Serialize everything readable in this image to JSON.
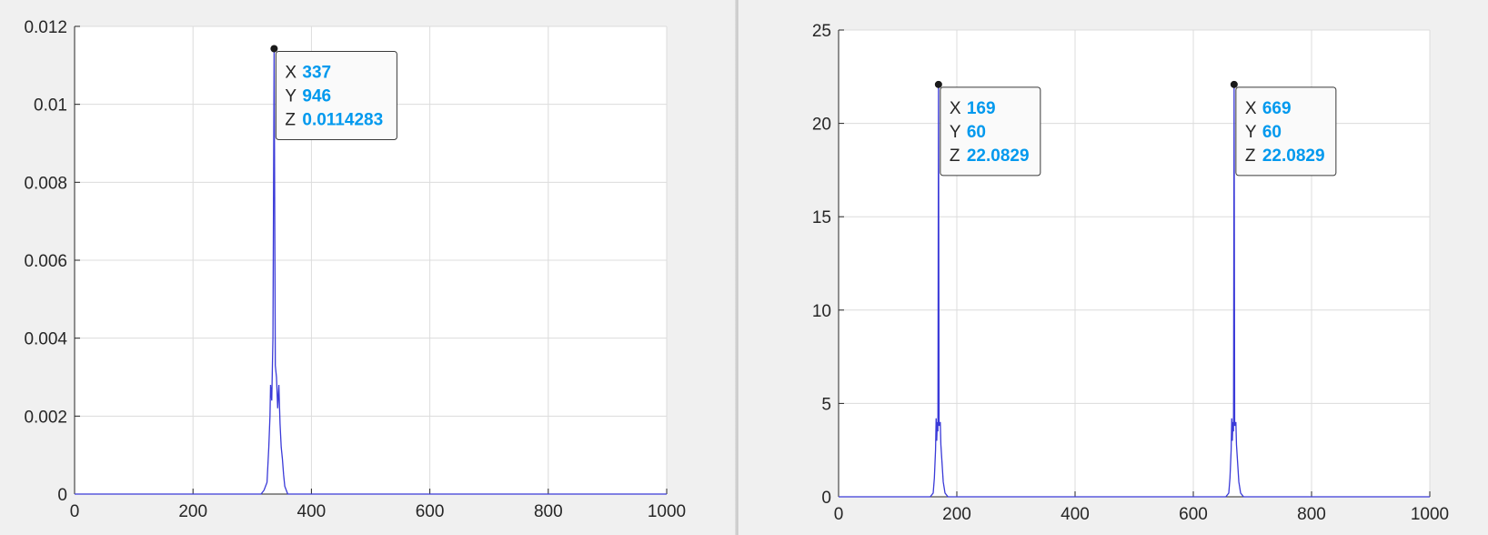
{
  "chart_data": [
    {
      "type": "line",
      "title": "",
      "xlabel": "",
      "ylabel": "",
      "xlim": [
        0,
        1000
      ],
      "ylim": [
        0,
        0.012
      ],
      "xticks": [
        "0",
        "200",
        "400",
        "600",
        "800",
        "1000"
      ],
      "yticks": [
        "0",
        "0.002",
        "0.004",
        "0.006",
        "0.008",
        "0.01",
        "0.012"
      ],
      "grid": true,
      "series": [
        {
          "values": [
            [
              0,
              0
            ],
            [
              315,
              0
            ],
            [
              320,
              0.0001
            ],
            [
              325,
              0.0003
            ],
            [
              328,
              0.0012
            ],
            [
              330,
              0.002
            ],
            [
              331,
              0.0028
            ],
            [
              333,
              0.0024
            ],
            [
              335,
              0.004
            ],
            [
              337,
              0.0114283
            ],
            [
              339,
              0.0033
            ],
            [
              341,
              0.003
            ],
            [
              343,
              0.0022
            ],
            [
              345,
              0.0028
            ],
            [
              347,
              0.0018
            ],
            [
              349,
              0.0012
            ],
            [
              351,
              0.0009
            ],
            [
              353,
              0.0005
            ],
            [
              355,
              0.0002
            ],
            [
              360,
              0
            ],
            [
              1000,
              0
            ]
          ],
          "color": "#3a3ad8"
        }
      ],
      "datatips": [
        {
          "x": 337,
          "z": 0.0114283,
          "x_label": "X",
          "x_value": "337",
          "y_label": "Y",
          "y_value": "946",
          "z_label": "Z",
          "z_value": "0.0114283"
        }
      ]
    },
    {
      "type": "line",
      "title": "",
      "xlabel": "",
      "ylabel": "",
      "xlim": [
        0,
        1000
      ],
      "ylim": [
        0,
        25
      ],
      "xticks": [
        "0",
        "200",
        "400",
        "600",
        "800",
        "1000"
      ],
      "yticks": [
        "0",
        "5",
        "10",
        "15",
        "20",
        "25"
      ],
      "grid": true,
      "series": [
        {
          "values": [
            [
              0,
              0
            ],
            [
              155,
              0
            ],
            [
              160,
              0.2
            ],
            [
              162,
              1.0
            ],
            [
              164,
              2.5
            ],
            [
              165,
              4.2
            ],
            [
              166,
              3.0
            ],
            [
              167,
              4.0
            ],
            [
              168,
              3.5
            ],
            [
              169,
              22.0829
            ],
            [
              170,
              3.8
            ],
            [
              172,
              4.0
            ],
            [
              173,
              2.8
            ],
            [
              175,
              1.8
            ],
            [
              177,
              0.8
            ],
            [
              180,
              0.2
            ],
            [
              185,
              0
            ],
            [
              655,
              0
            ],
            [
              660,
              0.2
            ],
            [
              662,
              1.0
            ],
            [
              664,
              2.5
            ],
            [
              665,
              4.2
            ],
            [
              666,
              3.0
            ],
            [
              667,
              4.0
            ],
            [
              668,
              3.5
            ],
            [
              669,
              22.0829
            ],
            [
              670,
              3.8
            ],
            [
              672,
              4.0
            ],
            [
              673,
              2.8
            ],
            [
              675,
              1.8
            ],
            [
              677,
              0.8
            ],
            [
              680,
              0.2
            ],
            [
              685,
              0
            ],
            [
              1000,
              0
            ]
          ],
          "color": "#3a3ad8"
        }
      ],
      "datatips": [
        {
          "x": 169,
          "z": 22.0829,
          "x_label": "X",
          "x_value": "169",
          "y_label": "Y",
          "y_value": "60",
          "z_label": "Z",
          "z_value": "22.0829"
        },
        {
          "x": 669,
          "z": 22.0829,
          "x_label": "X",
          "x_value": "669",
          "y_label": "Y",
          "y_value": "60",
          "z_label": "Z",
          "z_value": "22.0829"
        }
      ]
    }
  ]
}
